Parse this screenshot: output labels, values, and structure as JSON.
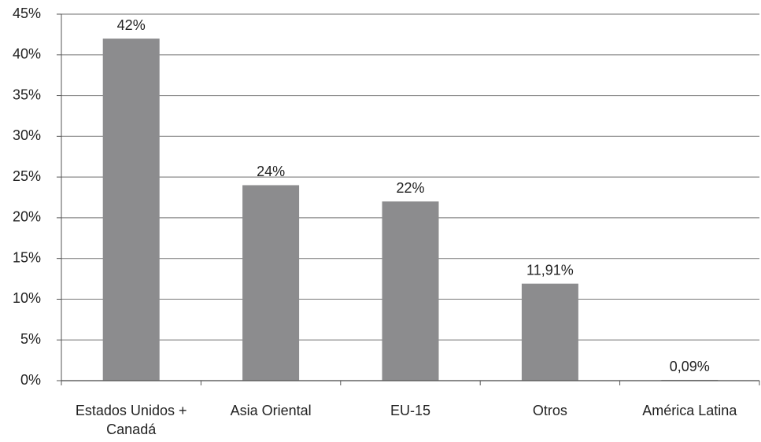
{
  "chart_data": {
    "type": "bar",
    "categories": [
      "Estados Unidos + Canadá",
      "Asia Oriental",
      "EU-15",
      "Otros",
      "América Latina"
    ],
    "values": [
      42,
      24,
      22,
      11.91,
      0.09
    ],
    "value_labels": [
      "42%",
      "24%",
      "22%",
      "11,91%",
      "0,09%"
    ],
    "color": "#8c8c8e",
    "ylim": [
      0,
      45
    ],
    "yticks": [
      {
        "value": 0,
        "label": "0%"
      },
      {
        "value": 5,
        "label": "5%"
      },
      {
        "value": 10,
        "label": "10%"
      },
      {
        "value": 15,
        "label": "15%"
      },
      {
        "value": 20,
        "label": "20%"
      },
      {
        "value": 25,
        "label": "25%"
      },
      {
        "value": 30,
        "label": "30%"
      },
      {
        "value": 35,
        "label": "35%"
      },
      {
        "value": 40,
        "label": "40%"
      },
      {
        "value": 45,
        "label": "45%"
      }
    ],
    "grid": true
  }
}
